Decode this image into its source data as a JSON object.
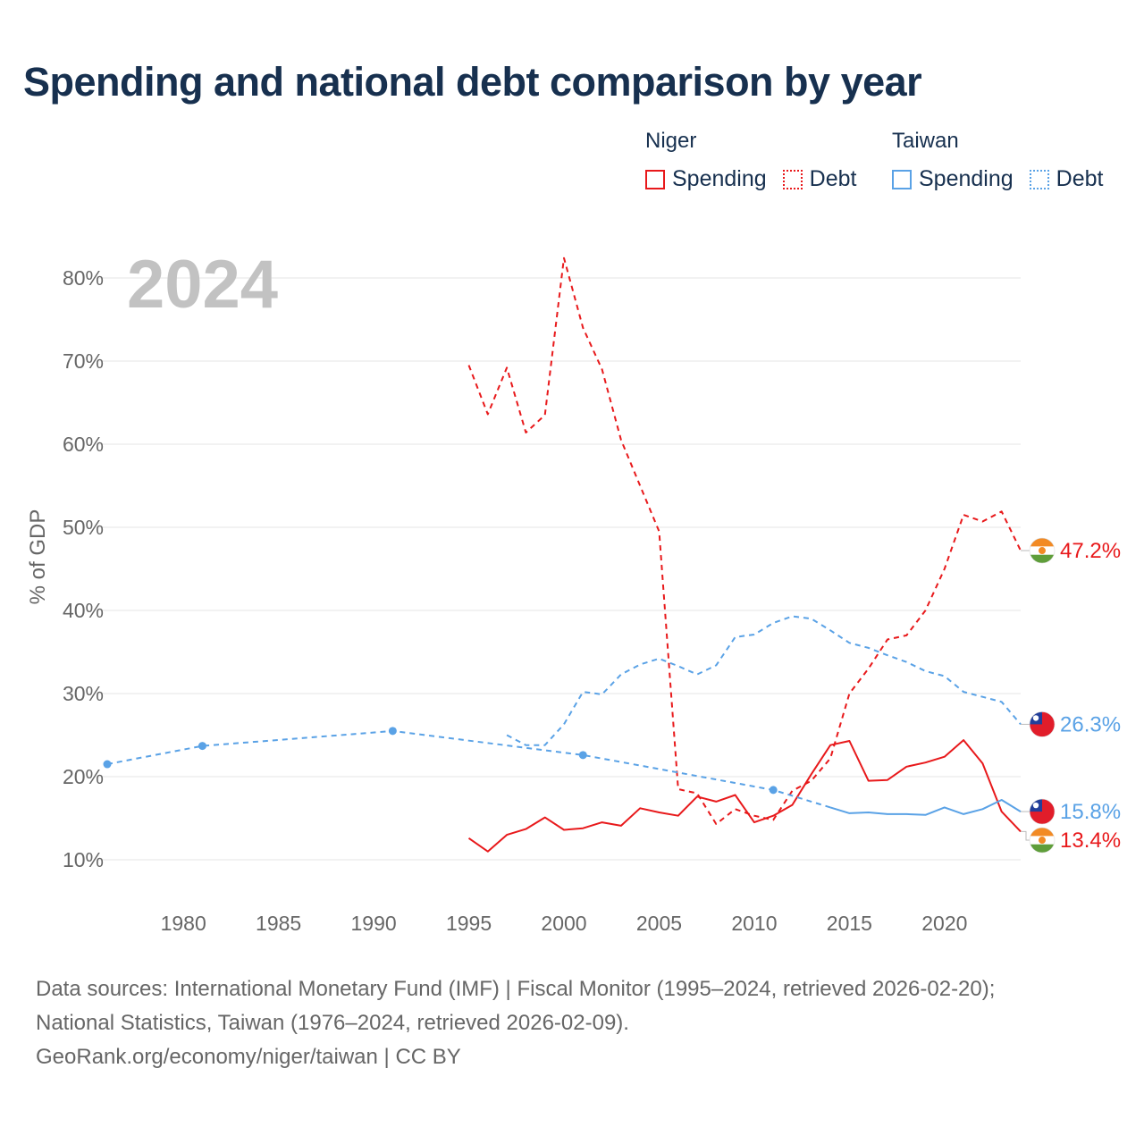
{
  "title": "Spending and national debt comparison by year",
  "legend": {
    "groups": [
      {
        "name": "Niger",
        "color": "#e8191b",
        "items": [
          {
            "label": "Spending",
            "style": "solid"
          },
          {
            "label": "Debt",
            "style": "dotted"
          }
        ]
      },
      {
        "name": "Taiwan",
        "color": "#5aa2e6",
        "items": [
          {
            "label": "Spending",
            "style": "solid"
          },
          {
            "label": "Debt",
            "style": "dotted"
          }
        ]
      }
    ]
  },
  "chart_data": {
    "type": "line",
    "year_label": "2024",
    "ylabel": "% of GDP",
    "xlabel": "",
    "xlim": [
      1976,
      2024
    ],
    "ylim": [
      5,
      85
    ],
    "x_ticks": [
      1980,
      1985,
      1990,
      1995,
      2000,
      2005,
      2010,
      2015,
      2020
    ],
    "y_ticks": [
      {
        "value": 10,
        "label": "10%"
      },
      {
        "value": 20,
        "label": "20%"
      },
      {
        "value": 30,
        "label": "30%"
      },
      {
        "value": 40,
        "label": "40%"
      },
      {
        "value": 50,
        "label": "50%"
      },
      {
        "value": 60,
        "label": "60%"
      },
      {
        "value": 70,
        "label": "70%"
      },
      {
        "value": 80,
        "label": "80%"
      }
    ],
    "grid": true,
    "series": [
      {
        "name": "Niger Debt",
        "country": "Niger",
        "metric": "Debt",
        "color": "#e8191b",
        "dashed": true,
        "end_label": "47.2%",
        "flag": "niger",
        "points": [
          [
            1995,
            69.5
          ],
          [
            1996,
            63.6
          ],
          [
            1997,
            69.2
          ],
          [
            1998,
            61.4
          ],
          [
            1999,
            63.5
          ],
          [
            2000,
            82.4
          ],
          [
            2001,
            74
          ],
          [
            2002,
            69
          ],
          [
            2003,
            60.5
          ],
          [
            2004,
            55
          ],
          [
            2005,
            49.5
          ],
          [
            2006,
            18.5
          ],
          [
            2007,
            18
          ],
          [
            2008,
            14.3
          ],
          [
            2009,
            16.1
          ],
          [
            2010,
            15.3
          ],
          [
            2011,
            14.8
          ],
          [
            2012,
            18.3
          ],
          [
            2013,
            19.5
          ],
          [
            2014,
            22.2
          ],
          [
            2015,
            30
          ],
          [
            2016,
            33
          ],
          [
            2017,
            36.5
          ],
          [
            2018,
            37
          ],
          [
            2019,
            40
          ],
          [
            2020,
            45
          ],
          [
            2021,
            51.5
          ],
          [
            2022,
            50.7
          ],
          [
            2023,
            51.9
          ],
          [
            2024,
            47.2
          ]
        ]
      },
      {
        "name": "Niger Spending",
        "country": "Niger",
        "metric": "Spending",
        "color": "#e8191b",
        "dashed": false,
        "end_label": "13.4%",
        "flag": "niger",
        "points": [
          [
            1995,
            12.6
          ],
          [
            1996,
            11
          ],
          [
            1997,
            13
          ],
          [
            1998,
            13.7
          ],
          [
            1999,
            15.1
          ],
          [
            2000,
            13.6
          ],
          [
            2001,
            13.8
          ],
          [
            2002,
            14.5
          ],
          [
            2003,
            14.1
          ],
          [
            2004,
            16.2
          ],
          [
            2005,
            15.7
          ],
          [
            2006,
            15.3
          ],
          [
            2007,
            17.6
          ],
          [
            2008,
            17
          ],
          [
            2009,
            17.8
          ],
          [
            2010,
            14.5
          ],
          [
            2011,
            15.3
          ],
          [
            2012,
            16.6
          ],
          [
            2013,
            20.3
          ],
          [
            2014,
            23.8
          ],
          [
            2015,
            24.3
          ],
          [
            2016,
            19.5
          ],
          [
            2017,
            19.6
          ],
          [
            2018,
            21.2
          ],
          [
            2019,
            21.7
          ],
          [
            2020,
            22.4
          ],
          [
            2021,
            24.4
          ],
          [
            2022,
            21.6
          ],
          [
            2023,
            15.8
          ],
          [
            2024,
            13.4
          ]
        ]
      },
      {
        "name": "Taiwan Debt",
        "country": "Taiwan",
        "metric": "Debt",
        "color": "#5aa2e6",
        "dashed": true,
        "end_label": "26.3%",
        "flag": "taiwan",
        "points": [
          [
            1997,
            25
          ],
          [
            1998,
            23.8
          ],
          [
            1999,
            23.8
          ],
          [
            2000,
            26.3
          ],
          [
            2001,
            30.2
          ],
          [
            2002,
            29.9
          ],
          [
            2003,
            32.3
          ],
          [
            2004,
            33.5
          ],
          [
            2005,
            34.2
          ],
          [
            2006,
            33.3
          ],
          [
            2007,
            32.3
          ],
          [
            2008,
            33.4
          ],
          [
            2009,
            36.8
          ],
          [
            2010,
            37.1
          ],
          [
            2011,
            38.5
          ],
          [
            2012,
            39.3
          ],
          [
            2013,
            39
          ],
          [
            2014,
            37.6
          ],
          [
            2015,
            36.1
          ],
          [
            2016,
            35.5
          ],
          [
            2017,
            34.6
          ],
          [
            2018,
            33.8
          ],
          [
            2019,
            32.7
          ],
          [
            2020,
            32.1
          ],
          [
            2021,
            30.2
          ],
          [
            2022,
            29.6
          ],
          [
            2023,
            29
          ],
          [
            2024,
            26.3
          ]
        ]
      },
      {
        "name": "Taiwan Spending",
        "country": "Taiwan",
        "metric": "Spending",
        "color": "#5aa2e6",
        "dashed": false,
        "end_label": "15.8%",
        "flag": "taiwan",
        "interpolated": {
          "before": 2014,
          "dashed": true
        },
        "markers": [
          1976,
          1981,
          1991,
          2001,
          2011
        ],
        "points": [
          [
            1976,
            21.5
          ],
          [
            1981,
            23.7
          ],
          [
            1991,
            25.5
          ],
          [
            2001,
            22.6
          ],
          [
            2011,
            18.4
          ],
          [
            2014,
            16.3
          ],
          [
            2015,
            15.6
          ],
          [
            2016,
            15.7
          ],
          [
            2017,
            15.5
          ],
          [
            2018,
            15.5
          ],
          [
            2019,
            15.4
          ],
          [
            2020,
            16.3
          ],
          [
            2021,
            15.5
          ],
          [
            2022,
            16.1
          ],
          [
            2023,
            17.2
          ],
          [
            2024,
            15.8
          ]
        ]
      }
    ]
  },
  "footer": {
    "line1": "Data sources: International Monetary Fund (IMF) | Fiscal Monitor (1995–2024, retrieved 2026-02-20);",
    "line2": "National Statistics, Taiwan (1976–2024, retrieved 2026-02-09).",
    "line3": "GeoRank.org/economy/niger/taiwan | CC BY"
  }
}
